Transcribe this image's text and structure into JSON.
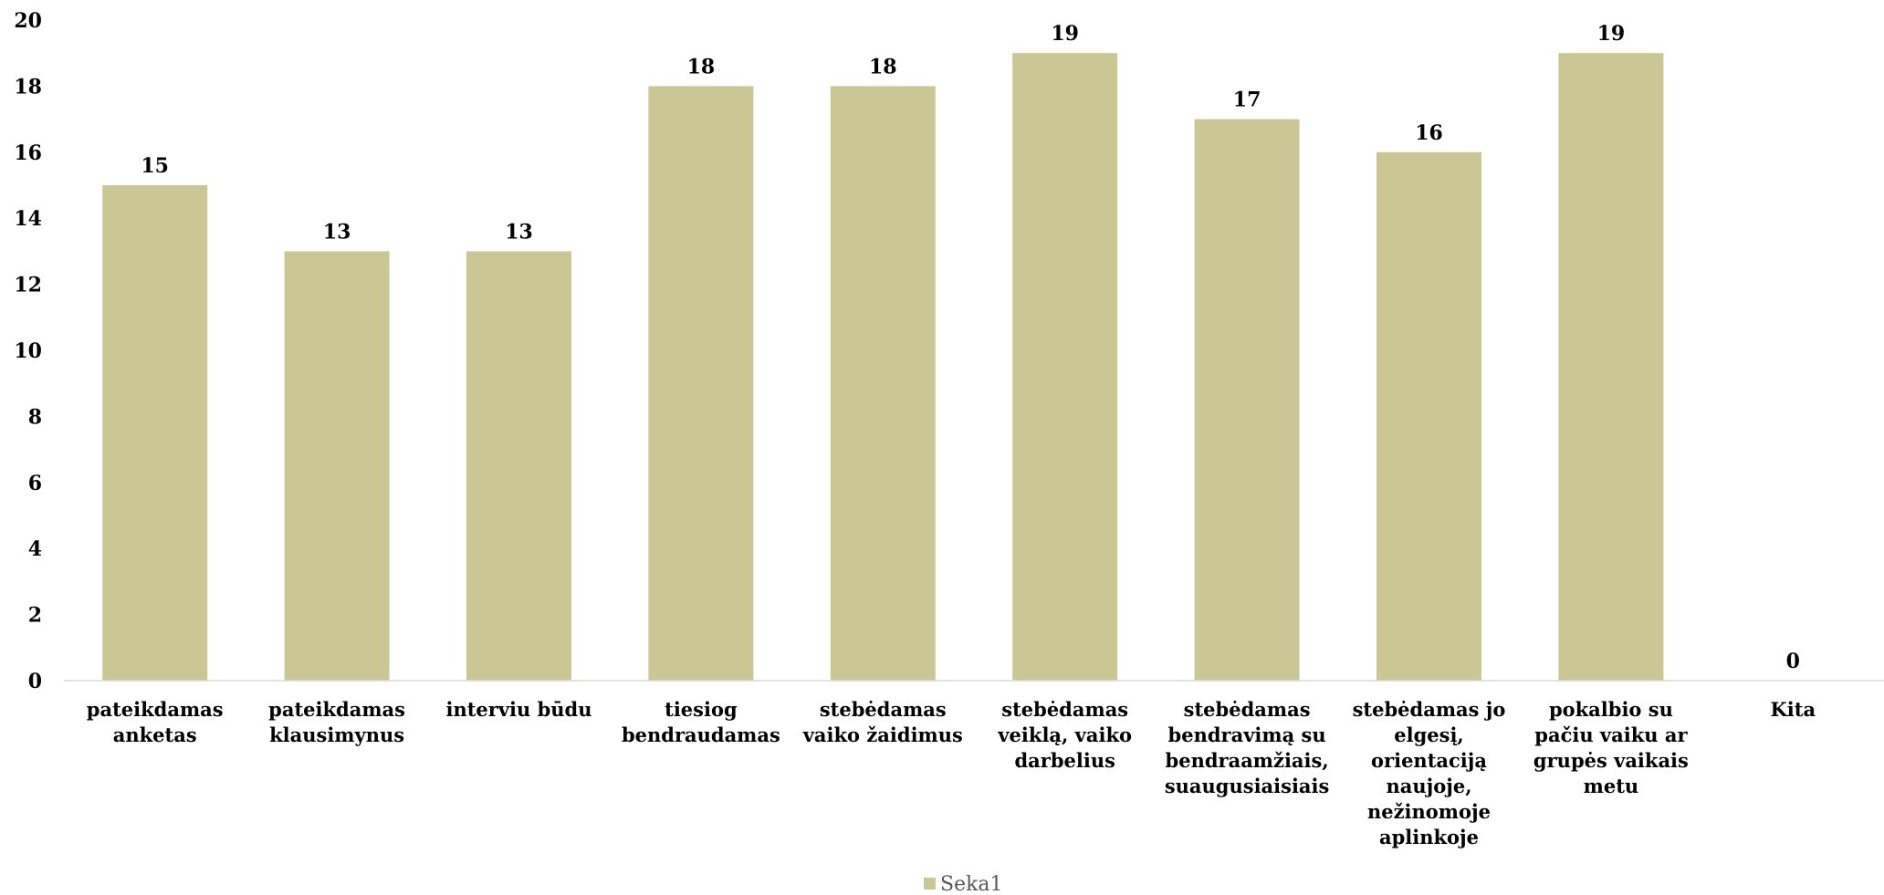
{
  "chart_data": {
    "type": "bar",
    "title": "",
    "xlabel": "",
    "ylabel": "",
    "ylim": [
      0,
      20
    ],
    "ytick_step": 2,
    "yticks": [
      "0",
      "2",
      "4",
      "6",
      "8",
      "10",
      "12",
      "14",
      "16",
      "18",
      "20"
    ],
    "grid": false,
    "legend_position": "bottom",
    "categories": [
      [
        "pateikdamas",
        "anketas"
      ],
      [
        "pateikdamas",
        "klausimynus"
      ],
      [
        "interviu būdu"
      ],
      [
        "tiesiog",
        "bendraudamas"
      ],
      [
        "stebėdamas",
        "vaiko žaidimus"
      ],
      [
        "stebėdamas",
        "veiklą, vaiko",
        "darbelius"
      ],
      [
        "stebėdamas",
        "bendravimą su",
        "bendraamžiais,",
        "suaugusiaisiais"
      ],
      [
        "stebėdamas jo",
        "elgesį,",
        "orientaciją",
        "naujoje,",
        "nežinomoje",
        "aplinkoje"
      ],
      [
        "pokalbio su",
        "pačiu vaiku ar",
        "grupės vaikais",
        "metu"
      ],
      [
        "Kita"
      ]
    ],
    "series": [
      {
        "name": "Seka1",
        "color": "#cbc795",
        "values": [
          15,
          13,
          13,
          18,
          18,
          19,
          17,
          16,
          19,
          0
        ],
        "labels": [
          "15",
          "13",
          "13",
          "18",
          "18",
          "19",
          "17",
          "16",
          "19",
          "0"
        ]
      }
    ]
  }
}
